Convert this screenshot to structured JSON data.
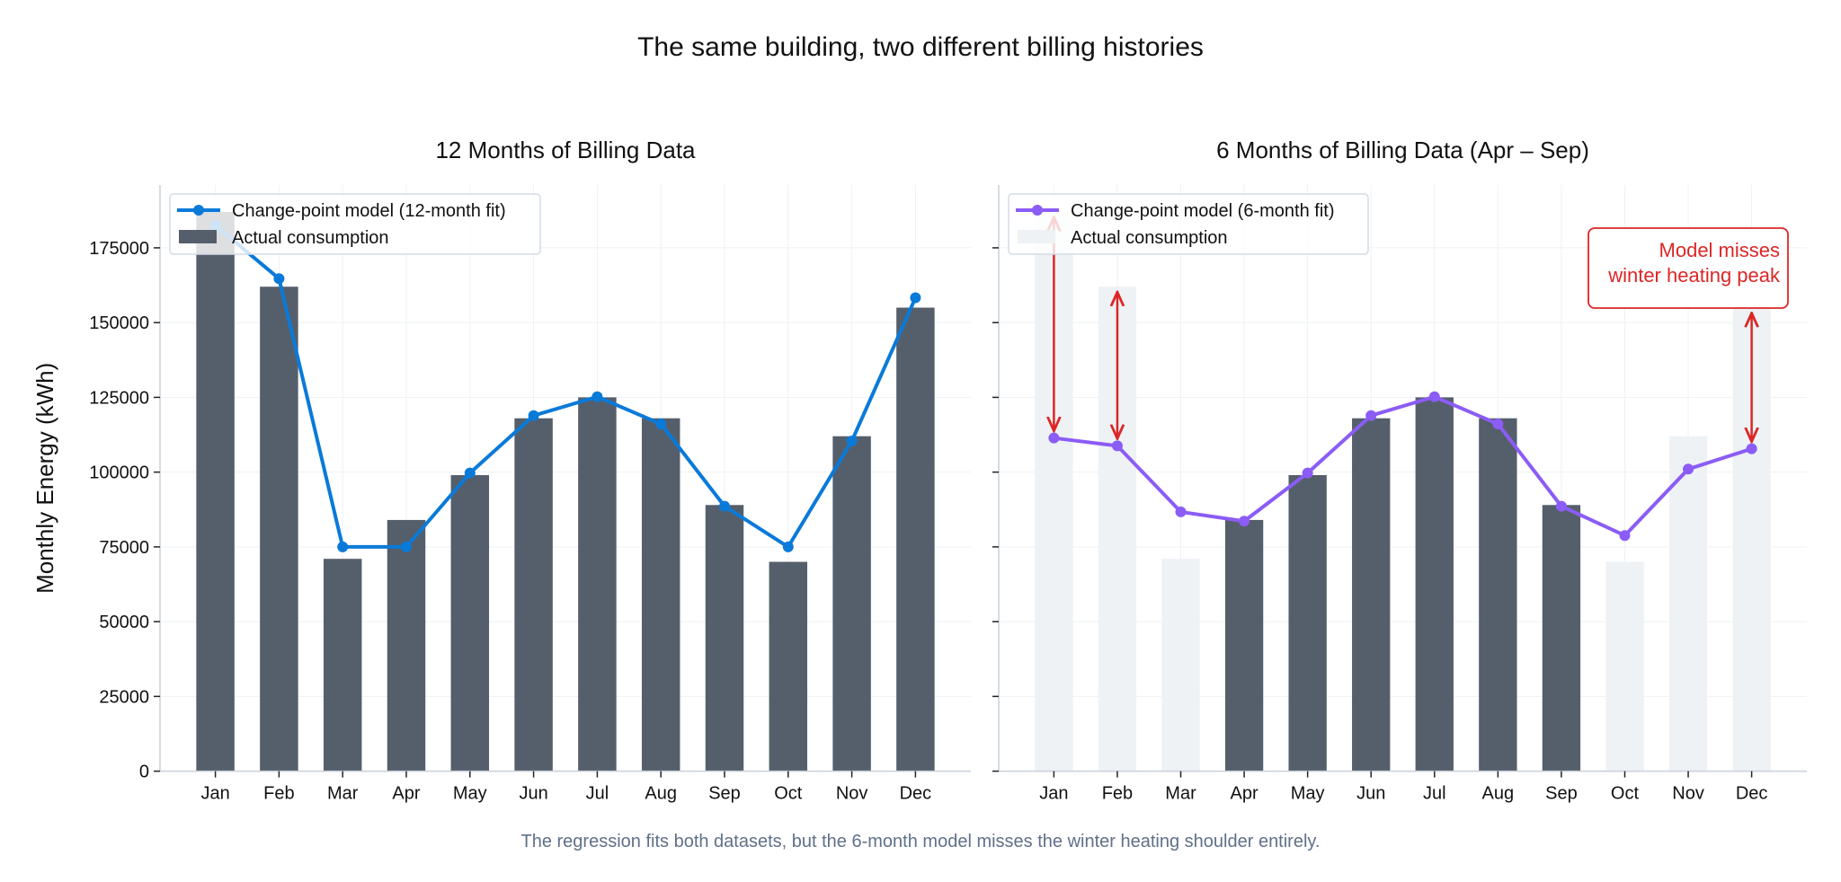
{
  "suptitle": "The same building, two different billing histories",
  "footer": "The regression fits both datasets, but the 6-month model misses the winter heating shoulder entirely.",
  "colors": {
    "bar": "#555f6b",
    "bar_faded": "#eef2f5",
    "model_12": "#0a7ad9",
    "model_6": "#8b5cf6",
    "annotation": "#dc2626",
    "grid": "#eef1f5",
    "spine": "#c8d0db",
    "footer": "#5f7089"
  },
  "chart_data": [
    {
      "type": "bar+line",
      "title": "12 Months of Billing Data",
      "ylabel": "Monthly Energy (kWh)",
      "ylim": [
        0,
        196000
      ],
      "yticks": [
        0,
        25000,
        50000,
        75000,
        100000,
        125000,
        150000,
        175000
      ],
      "ytick_labels": [
        "0",
        "25000",
        "50000",
        "75000",
        "100000",
        "125000",
        "150000",
        "175000"
      ],
      "categories": [
        "Jan",
        "Feb",
        "Mar",
        "Apr",
        "May",
        "Jun",
        "Jul",
        "Aug",
        "Sep",
        "Oct",
        "Nov",
        "Dec"
      ],
      "grid": true,
      "legend_placement": "top-left",
      "series": [
        {
          "name": "Actual consumption",
          "kind": "bar",
          "values": [
            187000,
            162000,
            71000,
            84000,
            99000,
            118000,
            125000,
            118000,
            89000,
            70000,
            112000,
            155000
          ],
          "highlighted": [
            true,
            true,
            true,
            true,
            true,
            true,
            true,
            true,
            true,
            true,
            true,
            true
          ]
        },
        {
          "name": "Change-point model (12-month fit)",
          "kind": "line",
          "values": [
            182500,
            164700,
            75000,
            75000,
            99700,
            118900,
            125200,
            116100,
            88600,
            75000,
            110400,
            158300
          ]
        }
      ]
    },
    {
      "type": "bar+line",
      "title": "6 Months of Billing Data (Apr – Sep)",
      "ylim": [
        0,
        196000
      ],
      "yticks": [
        0,
        25000,
        50000,
        75000,
        100000,
        125000,
        150000,
        175000
      ],
      "categories": [
        "Jan",
        "Feb",
        "Mar",
        "Apr",
        "May",
        "Jun",
        "Jul",
        "Aug",
        "Sep",
        "Oct",
        "Nov",
        "Dec"
      ],
      "grid": true,
      "legend_placement": "top-left",
      "series": [
        {
          "name": "Actual consumption",
          "kind": "bar",
          "values": [
            187000,
            162000,
            71000,
            84000,
            99000,
            118000,
            125000,
            118000,
            89000,
            70000,
            112000,
            155000
          ],
          "highlighted": [
            false,
            false,
            false,
            true,
            true,
            true,
            true,
            true,
            true,
            false,
            false,
            false
          ]
        },
        {
          "name": "Change-point model (6-month fit)",
          "kind": "line",
          "values": [
            111400,
            108800,
            86700,
            83600,
            99700,
            118900,
            125200,
            116100,
            88600,
            78800,
            101000,
            107800
          ]
        }
      ],
      "annotation": {
        "lines": [
          "Model misses",
          "winter heating peak"
        ],
        "arrows_at": [
          "Jan",
          "Feb",
          "Dec"
        ],
        "placement": "top-right"
      }
    }
  ]
}
